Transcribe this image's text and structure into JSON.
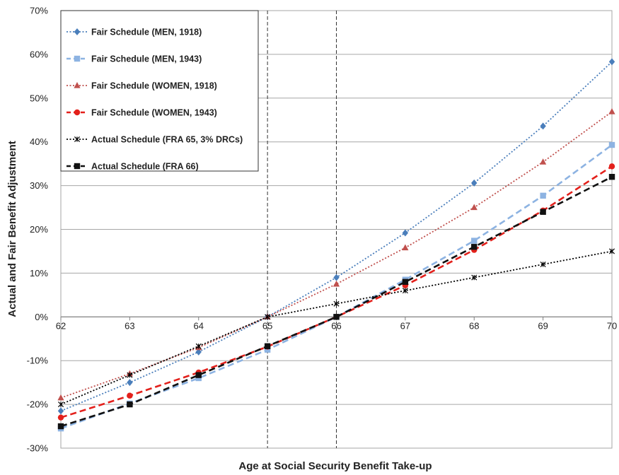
{
  "chart_data": {
    "type": "line",
    "xlabel": "Age at Social Security Benefit Take-up",
    "ylabel": "Actual and Fair Benefit Adjustment",
    "x": [
      62,
      63,
      64,
      65,
      66,
      67,
      68,
      69,
      70
    ],
    "x_ticks": [
      "62",
      "63",
      "64",
      "65",
      "66",
      "67",
      "68",
      "69",
      "70"
    ],
    "xlim": [
      62,
      70
    ],
    "ylim": [
      -30,
      70
    ],
    "y_ticks": [
      "70%",
      "60%",
      "50%",
      "40%",
      "30%",
      "20%",
      "10%",
      "0%",
      "-10%",
      "-20%",
      "-30%"
    ],
    "y_tick_values": [
      70,
      60,
      50,
      40,
      30,
      20,
      10,
      0,
      -10,
      -20,
      -30
    ],
    "grid": "horizontal",
    "reference_lines_x": [
      65,
      66
    ],
    "legend_position": "top-left",
    "series": [
      {
        "name": "Fair Schedule (MEN, 1918)",
        "color": "#4a7ebb",
        "marker": "diamond",
        "style": "dotted",
        "values": [
          -21.5,
          -15.0,
          -8.0,
          0.0,
          9.0,
          19.2,
          30.6,
          43.6,
          58.3
        ]
      },
      {
        "name": "Fair Schedule (MEN, 1943)",
        "color": "#8db3e2",
        "marker": "square",
        "style": "dashed",
        "values": [
          -25.5,
          -19.8,
          -14.0,
          -7.5,
          0.0,
          8.5,
          17.4,
          27.7,
          39.3
        ]
      },
      {
        "name": "Fair Schedule (WOMEN, 1918)",
        "color": "#c0504d",
        "marker": "triangle",
        "style": "dotted",
        "values": [
          -18.5,
          -13.0,
          -7.0,
          0.0,
          7.5,
          15.8,
          25.0,
          35.4,
          46.9
        ]
      },
      {
        "name": "Fair Schedule (WOMEN, 1943)",
        "color": "#e3201b",
        "marker": "circle",
        "style": "dashed",
        "values": [
          -23.0,
          -18.0,
          -12.7,
          -6.8,
          0.0,
          7.2,
          15.3,
          24.3,
          34.4
        ]
      },
      {
        "name": "Actual Schedule (FRA 65, 3% DRCs)",
        "color": "#000000",
        "marker": "star",
        "style": "dotted",
        "values": [
          -20.0,
          -13.3,
          -6.7,
          0.0,
          3.0,
          6.0,
          9.0,
          12.0,
          15.0
        ]
      },
      {
        "name": "Actual Schedule (FRA 66)",
        "color": "#111111",
        "marker": "square",
        "style": "dashed",
        "values": [
          -25.0,
          -20.0,
          -13.3,
          -6.7,
          0.0,
          8.0,
          16.0,
          24.0,
          32.0
        ]
      }
    ]
  }
}
